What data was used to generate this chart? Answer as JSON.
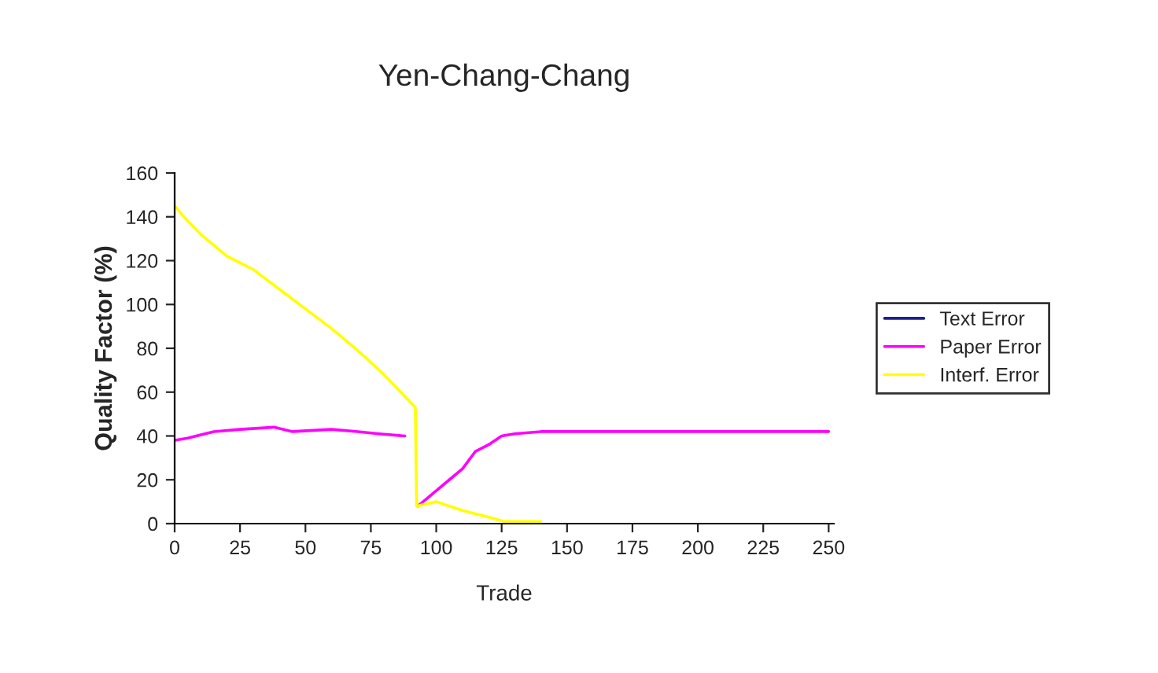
{
  "chart_data": {
    "type": "line",
    "title": "Yen-Chang-Chang",
    "xlabel": "Trade",
    "ylabel": "Quality Factor (%)",
    "xlim": [
      0,
      252
    ],
    "xticks": [
      0,
      25,
      50,
      75,
      100,
      125,
      150,
      175,
      200,
      225,
      250
    ],
    "ylim": [
      0,
      160
    ],
    "yticks": [
      0,
      20,
      40,
      60,
      80,
      100,
      120,
      140,
      160
    ],
    "grid": false,
    "legend": "right",
    "marker": "none",
    "line_style": "solid",
    "series": [
      {
        "name": "Text Error",
        "color": "#1f1f8f"
      },
      {
        "name": "Paper Error",
        "color": "#ff00ff",
        "x": [
          0,
          5,
          15,
          25,
          38,
          45,
          60,
          70,
          78,
          88,
          90,
          93,
          95,
          100,
          105,
          110,
          115,
          120,
          125,
          130,
          140,
          150,
          200,
          250
        ],
        "values": [
          38,
          39,
          42,
          43,
          44,
          42,
          43,
          42,
          41,
          40,
          null,
          8,
          10,
          15,
          20,
          25,
          33,
          36,
          40,
          41,
          42,
          42,
          42,
          42
        ]
      },
      {
        "name": "Interf. Error",
        "color": "#ffff00",
        "x": [
          0,
          5,
          10,
          20,
          30,
          40,
          50,
          60,
          70,
          80,
          88,
          92,
          92.5,
          100,
          110,
          120,
          126,
          133,
          140
        ],
        "values": [
          145,
          138,
          132,
          122,
          116,
          107,
          98,
          89,
          79,
          68,
          58,
          53,
          8,
          10,
          6,
          3,
          1,
          1,
          1
        ]
      }
    ]
  }
}
